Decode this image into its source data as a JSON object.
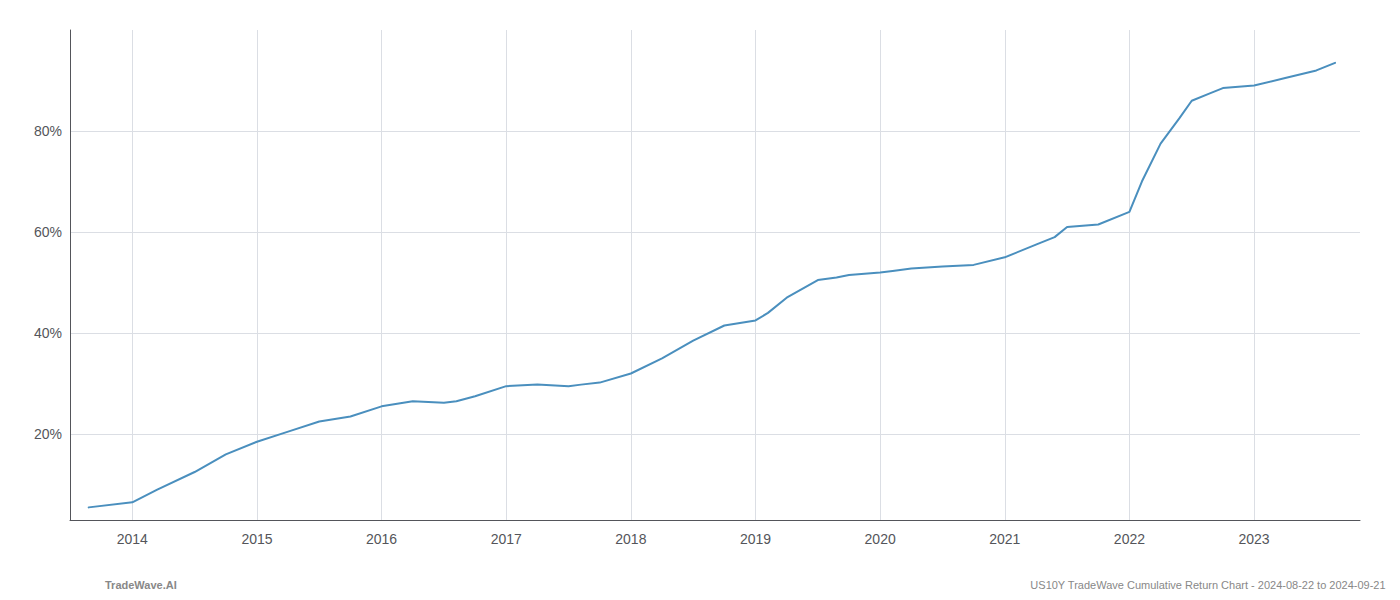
{
  "chart_data": {
    "type": "line",
    "x": [
      2013.65,
      2014.0,
      2014.2,
      2014.5,
      2014.75,
      2015.0,
      2015.25,
      2015.5,
      2015.75,
      2016.0,
      2016.25,
      2016.5,
      2016.6,
      2016.75,
      2017.0,
      2017.25,
      2017.5,
      2017.6,
      2017.75,
      2018.0,
      2018.25,
      2018.5,
      2018.75,
      2019.0,
      2019.1,
      2019.25,
      2019.5,
      2019.65,
      2019.75,
      2020.0,
      2020.1,
      2020.25,
      2020.5,
      2020.75,
      2021.0,
      2021.25,
      2021.4,
      2021.5,
      2021.75,
      2022.0,
      2022.1,
      2022.25,
      2022.4,
      2022.5,
      2022.65,
      2022.75,
      2023.0,
      2023.25,
      2023.5,
      2023.65
    ],
    "values": [
      5.5,
      6.5,
      9.0,
      12.5,
      16.0,
      18.5,
      20.5,
      22.5,
      23.5,
      25.5,
      26.5,
      26.2,
      26.5,
      27.5,
      29.5,
      29.8,
      29.5,
      29.8,
      30.2,
      32.0,
      35.0,
      38.5,
      41.5,
      42.5,
      44.0,
      47.0,
      50.5,
      51.0,
      51.5,
      52.0,
      52.3,
      52.8,
      53.2,
      53.5,
      55.0,
      57.5,
      59.0,
      61.0,
      61.5,
      64.0,
      70.0,
      77.5,
      82.5,
      86.0,
      87.5,
      88.5,
      89.0,
      90.5,
      92.0,
      93.5
    ],
    "color": "#4a8fbe",
    "xlim": [
      2013.5,
      2023.85
    ],
    "xticks": [
      2014,
      2015,
      2016,
      2017,
      2018,
      2019,
      2020,
      2021,
      2022,
      2023
    ],
    "ylim": [
      3,
      100
    ],
    "yticks": [
      {
        "value": 20,
        "label": "20%"
      },
      {
        "value": 40,
        "label": "40%"
      },
      {
        "value": 60,
        "label": "60%"
      },
      {
        "value": 80,
        "label": "80%"
      }
    ],
    "grid": true,
    "annotations": [
      "TradeWave.AI",
      "US10Y TradeWave Cumulative Return Chart - 2024-08-22 to 2024-09-21"
    ]
  }
}
